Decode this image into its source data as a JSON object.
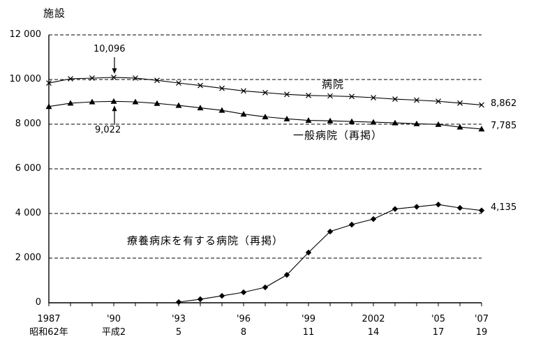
{
  "chart_data": {
    "type": "line",
    "title": "",
    "unit_label": "施設",
    "xlabel": "",
    "ylabel": "施設",
    "ylim": [
      0,
      12000
    ],
    "grid": "horizontal-dashed",
    "legend": "inline-labels",
    "x": [
      1987,
      1988,
      1989,
      1990,
      1991,
      1992,
      1993,
      1994,
      1995,
      1996,
      1997,
      1998,
      1999,
      2000,
      2001,
      2002,
      2003,
      2004,
      2005,
      2006,
      2007
    ],
    "series": [
      {
        "name": "病院",
        "marker": "x",
        "values": [
          9841,
          10034,
          10063,
          10096,
          10066,
          9963,
          9844,
          9731,
          9606,
          9490,
          9413,
          9333,
          9286,
          9266,
          9239,
          9187,
          9122,
          9077,
          9026,
          8943,
          8862
        ]
      },
      {
        "name": "一般病院（再掲）",
        "marker": "triangle",
        "values": [
          8790,
          8940,
          9000,
          9022,
          9000,
          8930,
          8840,
          8730,
          8620,
          8450,
          8330,
          8240,
          8170,
          8150,
          8120,
          8090,
          8060,
          8020,
          7990,
          7870,
          7785
        ]
      },
      {
        "name": "療養病床を有する病院（再掲）",
        "marker": "diamond",
        "values": [
          null,
          null,
          null,
          null,
          null,
          null,
          30,
          160,
          310,
          470,
          690,
          1250,
          2250,
          3190,
          3500,
          3750,
          4200,
          4300,
          4400,
          4250,
          4135
        ]
      }
    ],
    "y_ticks": [
      {
        "value": 12000,
        "label": "12 000"
      },
      {
        "value": 10000,
        "label": "10 000"
      },
      {
        "value": 8000,
        "label": "8 000"
      },
      {
        "value": 6000,
        "label": "6 000"
      },
      {
        "value": 4000,
        "label": "4 000"
      },
      {
        "value": 2000,
        "label": "2 000"
      },
      {
        "value": 0,
        "label": "0"
      }
    ],
    "x_labels": [
      {
        "year": 1987,
        "western": "1987",
        "era": "昭和62年"
      },
      {
        "year": 1990,
        "western": "'90",
        "era": "平成2"
      },
      {
        "year": 1993,
        "western": "'93",
        "era": "5"
      },
      {
        "year": 1996,
        "western": "'96",
        "era": "8"
      },
      {
        "year": 1999,
        "western": "'99",
        "era": "11"
      },
      {
        "year": 2002,
        "western": "2002",
        "era": "14"
      },
      {
        "year": 2005,
        "western": "'05",
        "era": "17"
      },
      {
        "year": 2007,
        "western": "'07",
        "era": "19"
      }
    ],
    "annotations": [
      {
        "text": "10,096",
        "series": "病院",
        "year": 1990,
        "value": 10096,
        "direction": "down"
      },
      {
        "text": "9,022",
        "series": "一般病院（再掲）",
        "year": 1990,
        "value": 9022,
        "direction": "up"
      }
    ],
    "end_labels": [
      {
        "series": "病院",
        "text": "8,862"
      },
      {
        "series": "一般病院（再掲）",
        "text": "7,785"
      },
      {
        "series": "療養病床を有する病院（再掲）",
        "text": "4,135"
      }
    ],
    "colors": {
      "line": "#000000",
      "background": "#ffffff"
    }
  }
}
